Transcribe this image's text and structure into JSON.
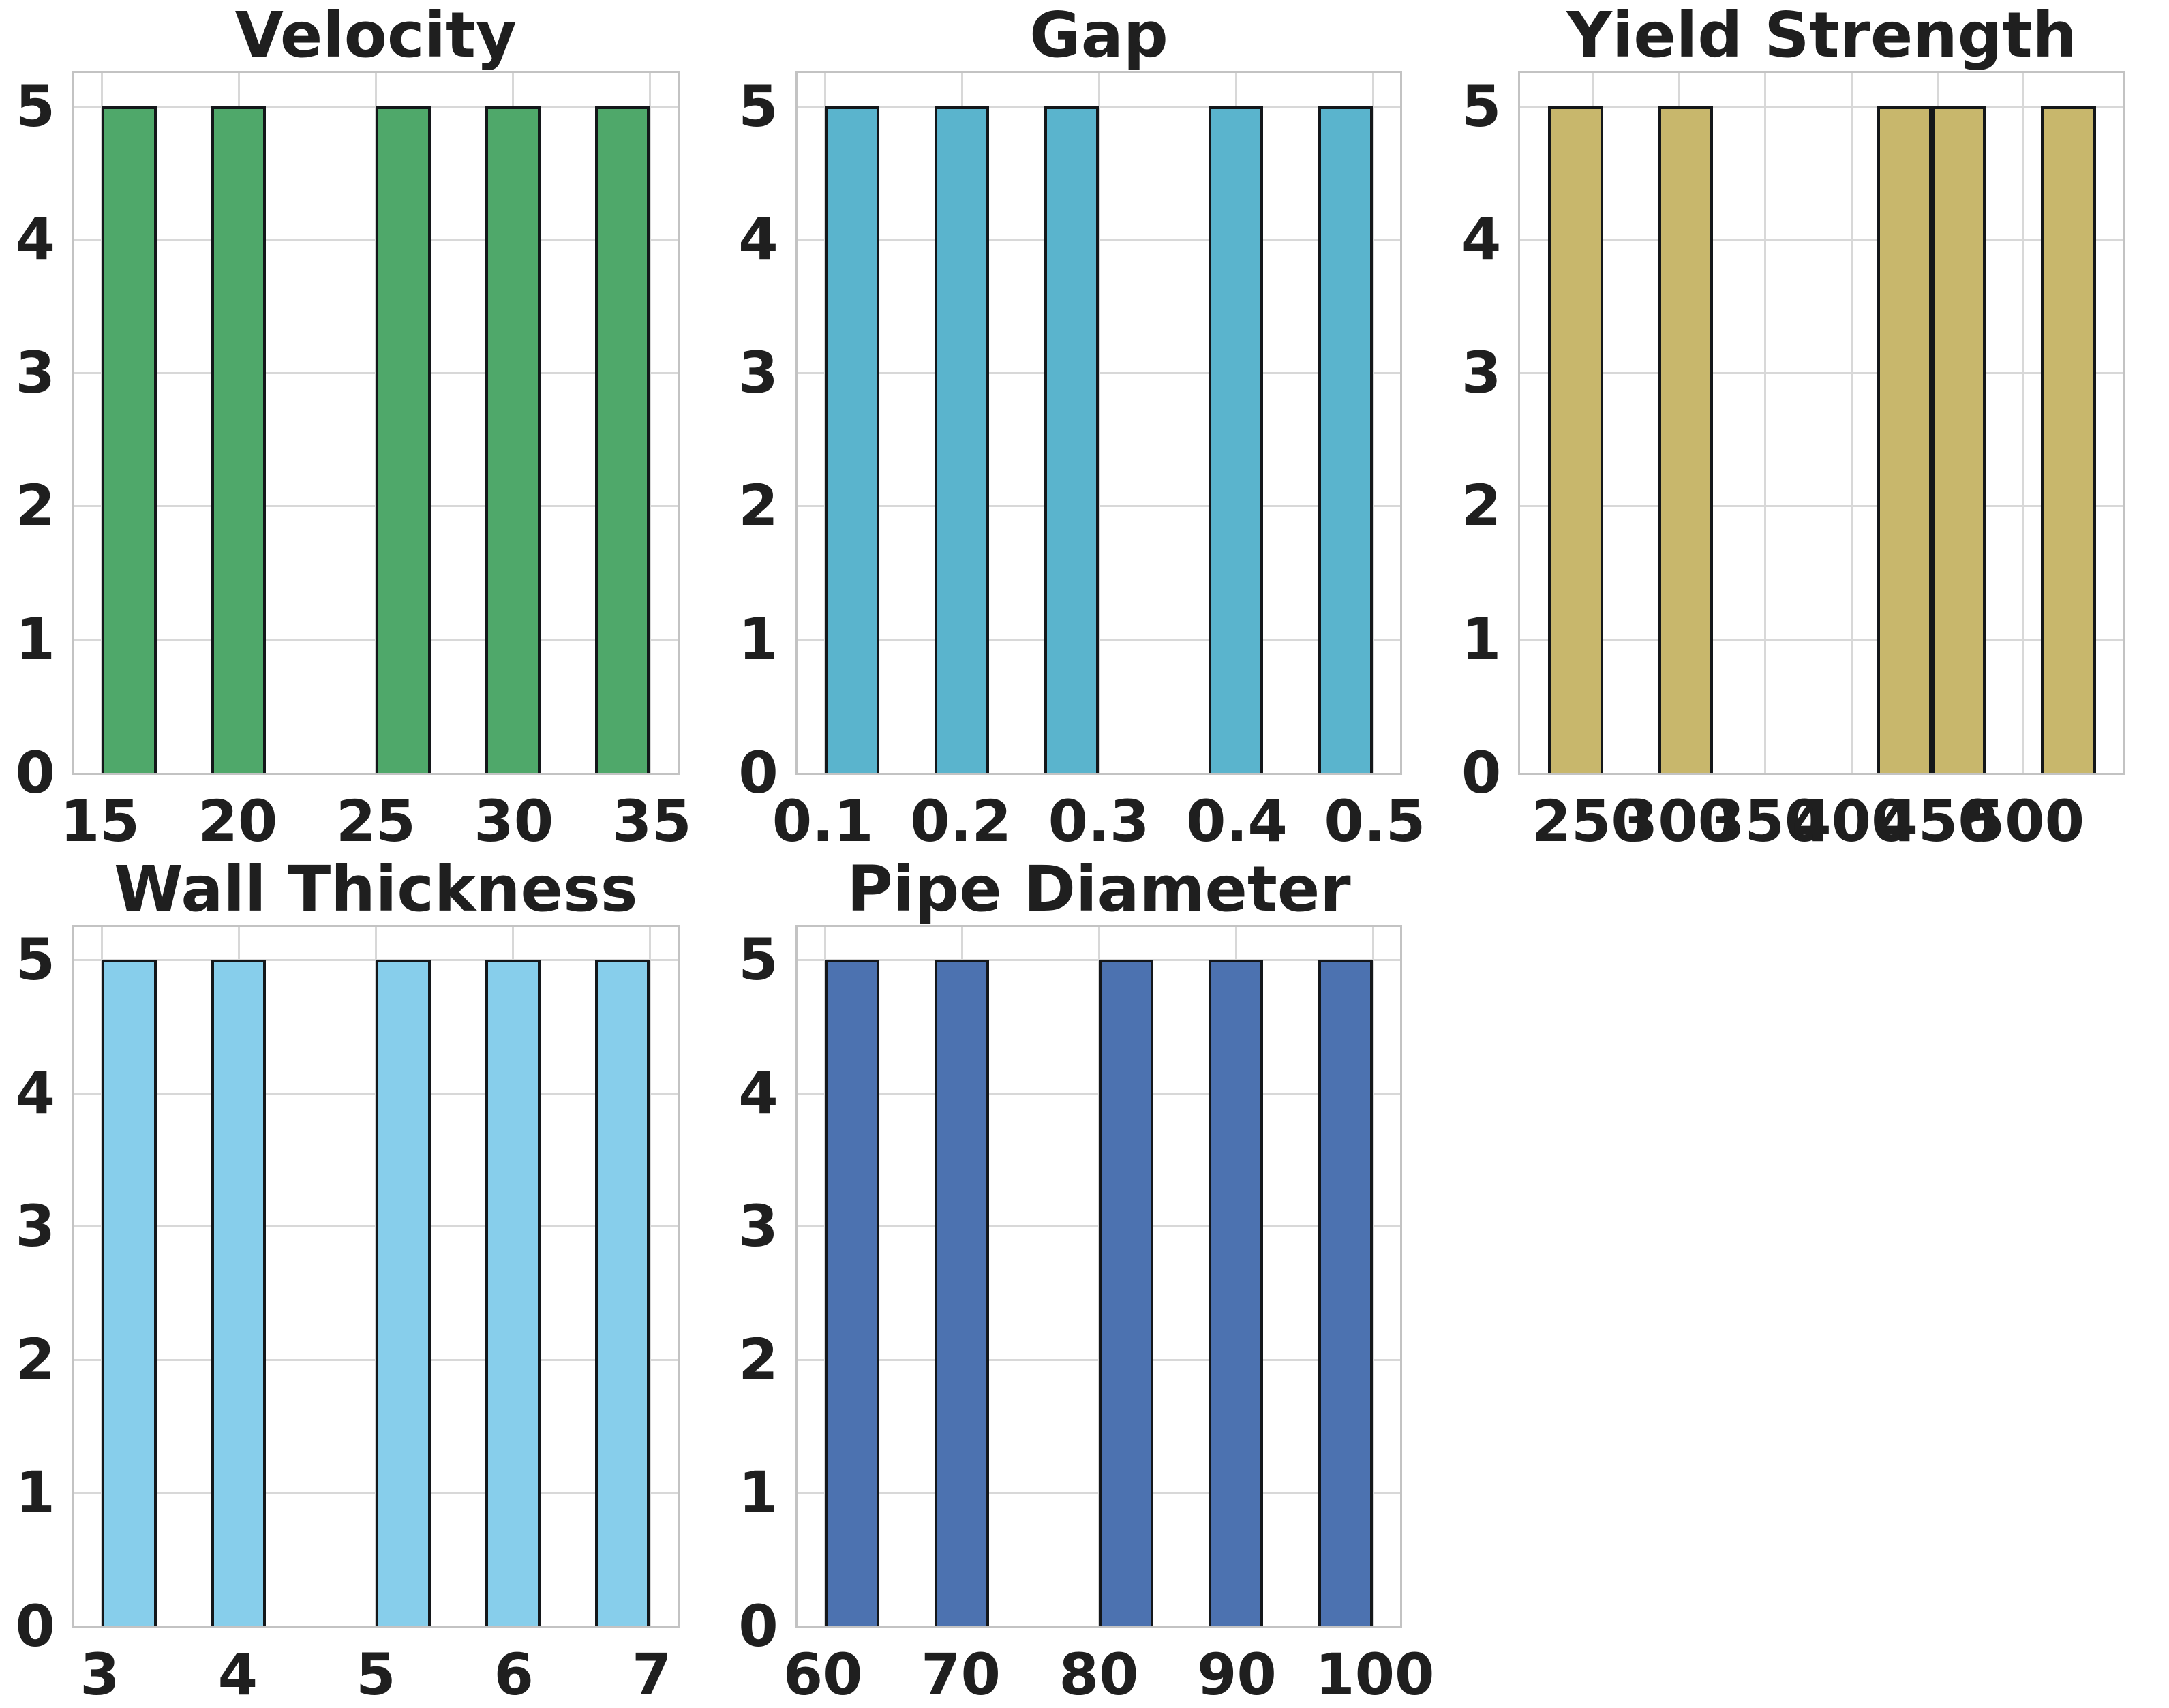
{
  "figure": {
    "background": "#ffffff",
    "grid_color": "#d8d8d8",
    "axes_border_color": "#c3c3c3",
    "text_color": "#1f1f1f",
    "layout": "2 rows x 3 columns of histogram panels, bottom-right cell empty",
    "grid_visible": true
  },
  "chart_data": [
    {
      "type": "bar",
      "title": "Velocity",
      "bar_color": "#4fa86a",
      "bar_edge_color": "#14171a",
      "xlim": [
        14,
        36
      ],
      "ylim": [
        0,
        5.25
      ],
      "xticks": [
        {
          "value": 15,
          "label": "15"
        },
        {
          "value": 20,
          "label": "20"
        },
        {
          "value": 25,
          "label": "25"
        },
        {
          "value": 30,
          "label": "30"
        },
        {
          "value": 35,
          "label": "35"
        }
      ],
      "yticks": [
        {
          "value": 0,
          "label": "0"
        },
        {
          "value": 1,
          "label": "1"
        },
        {
          "value": 2,
          "label": "2"
        },
        {
          "value": 3,
          "label": "3"
        },
        {
          "value": 4,
          "label": "4"
        },
        {
          "value": 5,
          "label": "5"
        }
      ],
      "bars": [
        {
          "x0": 15,
          "x1": 17,
          "height": 5
        },
        {
          "x0": 19,
          "x1": 21,
          "height": 5
        },
        {
          "x0": 25,
          "x1": 27,
          "height": 5
        },
        {
          "x0": 29,
          "x1": 31,
          "height": 5
        },
        {
          "x0": 33,
          "x1": 35,
          "height": 5
        }
      ],
      "grid": true,
      "legend": null
    },
    {
      "type": "bar",
      "title": "Gap",
      "bar_color": "#5ab4cd",
      "bar_edge_color": "#14171a",
      "xlim": [
        0.08,
        0.52
      ],
      "ylim": [
        0,
        5.25
      ],
      "xticks": [
        {
          "value": 0.1,
          "label": "0.1"
        },
        {
          "value": 0.2,
          "label": "0.2"
        },
        {
          "value": 0.3,
          "label": "0.3"
        },
        {
          "value": 0.4,
          "label": "0.4"
        },
        {
          "value": 0.5,
          "label": "0.5"
        }
      ],
      "yticks": [
        {
          "value": 0,
          "label": "0"
        },
        {
          "value": 1,
          "label": "1"
        },
        {
          "value": 2,
          "label": "2"
        },
        {
          "value": 3,
          "label": "3"
        },
        {
          "value": 4,
          "label": "4"
        },
        {
          "value": 5,
          "label": "5"
        }
      ],
      "bars": [
        {
          "x0": 0.1,
          "x1": 0.14,
          "height": 5
        },
        {
          "x0": 0.18,
          "x1": 0.22,
          "height": 5
        },
        {
          "x0": 0.26,
          "x1": 0.3,
          "height": 5
        },
        {
          "x0": 0.38,
          "x1": 0.42,
          "height": 5
        },
        {
          "x0": 0.46,
          "x1": 0.5,
          "height": 5
        }
      ],
      "grid": true,
      "legend": null
    },
    {
      "type": "bar",
      "title": "Yield Strength",
      "bar_color": "#c8b76c",
      "bar_edge_color": "#14171a",
      "xlim": [
        208,
        558
      ],
      "ylim": [
        0,
        5.25
      ],
      "xticks": [
        {
          "value": 250,
          "label": "250"
        },
        {
          "value": 300,
          "label": "300"
        },
        {
          "value": 350,
          "label": "350"
        },
        {
          "value": 400,
          "label": "400"
        },
        {
          "value": 450,
          "label": "450"
        },
        {
          "value": 500,
          "label": "500"
        }
      ],
      "yticks": [
        {
          "value": 0,
          "label": "0"
        },
        {
          "value": 1,
          "label": "1"
        },
        {
          "value": 2,
          "label": "2"
        },
        {
          "value": 3,
          "label": "3"
        },
        {
          "value": 4,
          "label": "4"
        },
        {
          "value": 5,
          "label": "5"
        }
      ],
      "bars": [
        {
          "x0": 224,
          "x1": 256,
          "height": 5
        },
        {
          "x0": 288,
          "x1": 320,
          "height": 5
        },
        {
          "x0": 415,
          "x1": 447,
          "height": 5
        },
        {
          "x0": 447,
          "x1": 478,
          "height": 5
        },
        {
          "x0": 510,
          "x1": 542,
          "height": 5
        }
      ],
      "grid": true,
      "legend": null
    },
    {
      "type": "bar",
      "title": "Wall Thickness",
      "bar_color": "#87ceeb",
      "bar_edge_color": "#14171a",
      "xlim": [
        2.8,
        7.2
      ],
      "ylim": [
        0,
        5.25
      ],
      "xticks": [
        {
          "value": 3,
          "label": "3"
        },
        {
          "value": 4,
          "label": "4"
        },
        {
          "value": 5,
          "label": "5"
        },
        {
          "value": 6,
          "label": "6"
        },
        {
          "value": 7,
          "label": "7"
        }
      ],
      "yticks": [
        {
          "value": 0,
          "label": "0"
        },
        {
          "value": 1,
          "label": "1"
        },
        {
          "value": 2,
          "label": "2"
        },
        {
          "value": 3,
          "label": "3"
        },
        {
          "value": 4,
          "label": "4"
        },
        {
          "value": 5,
          "label": "5"
        }
      ],
      "bars": [
        {
          "x0": 3.0,
          "x1": 3.4,
          "height": 5
        },
        {
          "x0": 3.8,
          "x1": 4.2,
          "height": 5
        },
        {
          "x0": 5.0,
          "x1": 5.4,
          "height": 5
        },
        {
          "x0": 5.8,
          "x1": 6.2,
          "height": 5
        },
        {
          "x0": 6.6,
          "x1": 7.0,
          "height": 5
        }
      ],
      "grid": true,
      "legend": null
    },
    {
      "type": "bar",
      "title": "Pipe Diameter",
      "bar_color": "#4c72b0",
      "bar_edge_color": "#14171a",
      "xlim": [
        58,
        102
      ],
      "ylim": [
        0,
        5.25
      ],
      "xticks": [
        {
          "value": 60,
          "label": "60"
        },
        {
          "value": 70,
          "label": "70"
        },
        {
          "value": 80,
          "label": "80"
        },
        {
          "value": 90,
          "label": "90"
        },
        {
          "value": 100,
          "label": "100"
        }
      ],
      "yticks": [
        {
          "value": 0,
          "label": "0"
        },
        {
          "value": 1,
          "label": "1"
        },
        {
          "value": 2,
          "label": "2"
        },
        {
          "value": 3,
          "label": "3"
        },
        {
          "value": 4,
          "label": "4"
        },
        {
          "value": 5,
          "label": "5"
        }
      ],
      "bars": [
        {
          "x0": 60,
          "x1": 64,
          "height": 5
        },
        {
          "x0": 68,
          "x1": 72,
          "height": 5
        },
        {
          "x0": 80,
          "x1": 84,
          "height": 5
        },
        {
          "x0": 88,
          "x1": 92,
          "height": 5
        },
        {
          "x0": 96,
          "x1": 100,
          "height": 5
        }
      ],
      "grid": true,
      "legend": null
    }
  ]
}
